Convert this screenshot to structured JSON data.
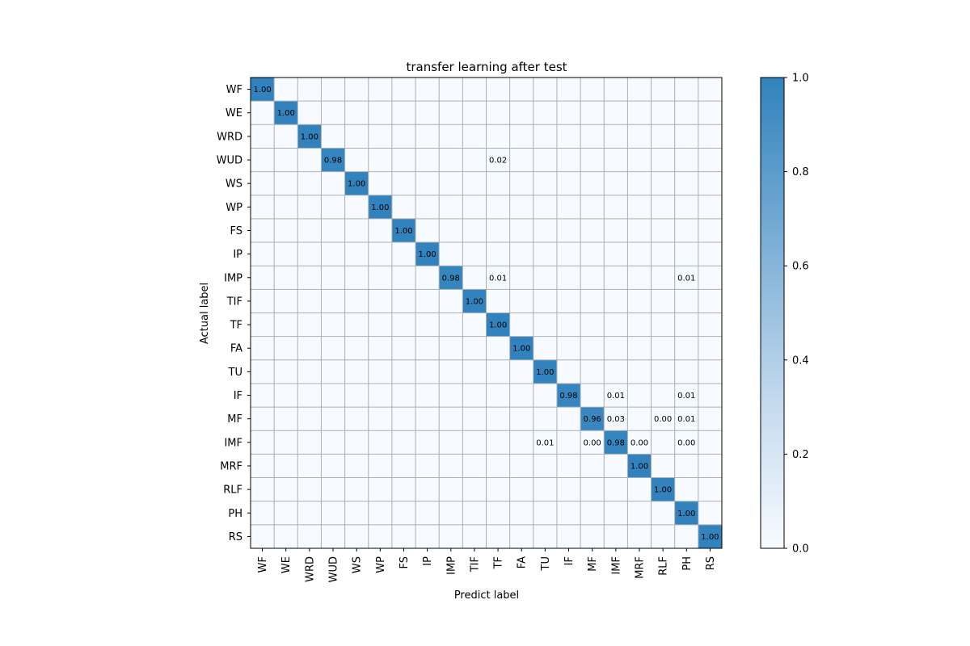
{
  "chart_data": {
    "type": "heatmap",
    "title": "transfer learning after test",
    "xlabel": "Predict label",
    "ylabel": "Actual label",
    "labels": [
      "WF",
      "WE",
      "WRD",
      "WUD",
      "WS",
      "WP",
      "FS",
      "IP",
      "IMP",
      "TIF",
      "TF",
      "FA",
      "TU",
      "IF",
      "MF",
      "IMF",
      "MRF",
      "RLF",
      "PH",
      "RS"
    ],
    "matrix": [
      [
        1.0,
        0,
        0,
        0,
        0,
        0,
        0,
        0,
        0,
        0,
        0,
        0,
        0,
        0,
        0,
        0,
        0,
        0,
        0,
        0
      ],
      [
        0,
        1.0,
        0,
        0,
        0,
        0,
        0,
        0,
        0,
        0,
        0,
        0,
        0,
        0,
        0,
        0,
        0,
        0,
        0,
        0
      ],
      [
        0,
        0,
        1.0,
        0,
        0,
        0,
        0,
        0,
        0,
        0,
        0,
        0,
        0,
        0,
        0,
        0,
        0,
        0,
        0,
        0
      ],
      [
        0,
        0,
        0,
        0.98,
        0,
        0,
        0,
        0,
        0,
        0,
        0.02,
        0,
        0,
        0,
        0,
        0,
        0,
        0,
        0,
        0
      ],
      [
        0,
        0,
        0,
        0,
        1.0,
        0,
        0,
        0,
        0,
        0,
        0,
        0,
        0,
        0,
        0,
        0,
        0,
        0,
        0,
        0
      ],
      [
        0,
        0,
        0,
        0,
        0,
        1.0,
        0,
        0,
        0,
        0,
        0,
        0,
        0,
        0,
        0,
        0,
        0,
        0,
        0,
        0
      ],
      [
        0,
        0,
        0,
        0,
        0,
        0,
        1.0,
        0,
        0,
        0,
        0,
        0,
        0,
        0,
        0,
        0,
        0,
        0,
        0,
        0
      ],
      [
        0,
        0,
        0,
        0,
        0,
        0,
        0,
        1.0,
        0,
        0,
        0,
        0,
        0,
        0,
        0,
        0,
        0,
        0,
        0,
        0
      ],
      [
        0,
        0,
        0,
        0,
        0,
        0,
        0,
        0,
        0.98,
        0,
        0.01,
        0,
        0,
        0,
        0,
        0,
        0,
        0,
        0.01,
        0
      ],
      [
        0,
        0,
        0,
        0,
        0,
        0,
        0,
        0,
        0,
        1.0,
        0,
        0,
        0,
        0,
        0,
        0,
        0,
        0,
        0,
        0
      ],
      [
        0,
        0,
        0,
        0,
        0,
        0,
        0,
        0,
        0,
        0,
        1.0,
        0,
        0,
        0,
        0,
        0,
        0,
        0,
        0,
        0
      ],
      [
        0,
        0,
        0,
        0,
        0,
        0,
        0,
        0,
        0,
        0,
        0,
        1.0,
        0,
        0,
        0,
        0,
        0,
        0,
        0,
        0
      ],
      [
        0,
        0,
        0,
        0,
        0,
        0,
        0,
        0,
        0,
        0,
        0,
        0,
        1.0,
        0,
        0,
        0,
        0,
        0,
        0,
        0
      ],
      [
        0,
        0,
        0,
        0,
        0,
        0,
        0,
        0,
        0,
        0,
        0,
        0,
        0,
        0.98,
        0,
        0.01,
        0,
        0,
        0.01,
        0
      ],
      [
        0,
        0,
        0,
        0,
        0,
        0,
        0,
        0,
        0,
        0,
        0,
        0,
        0,
        0,
        0.96,
        0.03,
        0,
        0.0,
        0.01,
        0
      ],
      [
        0,
        0,
        0,
        0,
        0,
        0,
        0,
        0,
        0,
        0,
        0,
        0,
        0.01,
        0,
        0.0,
        0.98,
        0.0,
        0,
        0.0,
        0
      ],
      [
        0,
        0,
        0,
        0,
        0,
        0,
        0,
        0,
        0,
        0,
        0,
        0,
        0,
        0,
        0,
        0,
        1.0,
        0,
        0,
        0
      ],
      [
        0,
        0,
        0,
        0,
        0,
        0,
        0,
        0,
        0,
        0,
        0,
        0,
        0,
        0,
        0,
        0,
        0,
        1.0,
        0,
        0
      ],
      [
        0,
        0,
        0,
        0,
        0,
        0,
        0,
        0,
        0,
        0,
        0,
        0,
        0,
        0,
        0,
        0,
        0,
        0,
        1.0,
        0
      ],
      [
        0,
        0,
        0,
        0,
        0,
        0,
        0,
        0,
        0,
        0,
        0,
        0,
        0,
        0,
        0,
        0,
        0,
        0,
        0,
        1.0
      ]
    ],
    "cell_labels": [
      [
        0,
        0,
        "1.00"
      ],
      [
        1,
        1,
        "1.00"
      ],
      [
        2,
        2,
        "1.00"
      ],
      [
        3,
        3,
        "0.98"
      ],
      [
        3,
        10,
        "0.02"
      ],
      [
        4,
        4,
        "1.00"
      ],
      [
        5,
        5,
        "1.00"
      ],
      [
        6,
        6,
        "1.00"
      ],
      [
        7,
        7,
        "1.00"
      ],
      [
        8,
        8,
        "0.98"
      ],
      [
        8,
        10,
        "0.01"
      ],
      [
        8,
        18,
        "0.01"
      ],
      [
        9,
        9,
        "1.00"
      ],
      [
        10,
        10,
        "1.00"
      ],
      [
        11,
        11,
        "1.00"
      ],
      [
        12,
        12,
        "1.00"
      ],
      [
        13,
        13,
        "0.98"
      ],
      [
        13,
        15,
        "0.01"
      ],
      [
        13,
        18,
        "0.01"
      ],
      [
        14,
        14,
        "0.96"
      ],
      [
        14,
        15,
        "0.03"
      ],
      [
        14,
        17,
        "0.00"
      ],
      [
        14,
        18,
        "0.01"
      ],
      [
        15,
        12,
        "0.01"
      ],
      [
        15,
        14,
        "0.00"
      ],
      [
        15,
        15,
        "0.98"
      ],
      [
        15,
        16,
        "0.00"
      ],
      [
        15,
        18,
        "0.00"
      ],
      [
        16,
        16,
        "1.00"
      ],
      [
        17,
        17,
        "1.00"
      ],
      [
        18,
        18,
        "1.00"
      ],
      [
        19,
        19,
        "1.00"
      ]
    ],
    "colorbar": {
      "range": [
        0,
        1
      ],
      "ticks": [
        "0.0",
        "0.2",
        "0.4",
        "0.6",
        "0.8",
        "1.0"
      ]
    },
    "colormap": {
      "low": "#f7fbff",
      "mid": "#c6dbef",
      "high": "#3182bd"
    },
    "grid": true,
    "grid_color": "#a9b0b7"
  }
}
